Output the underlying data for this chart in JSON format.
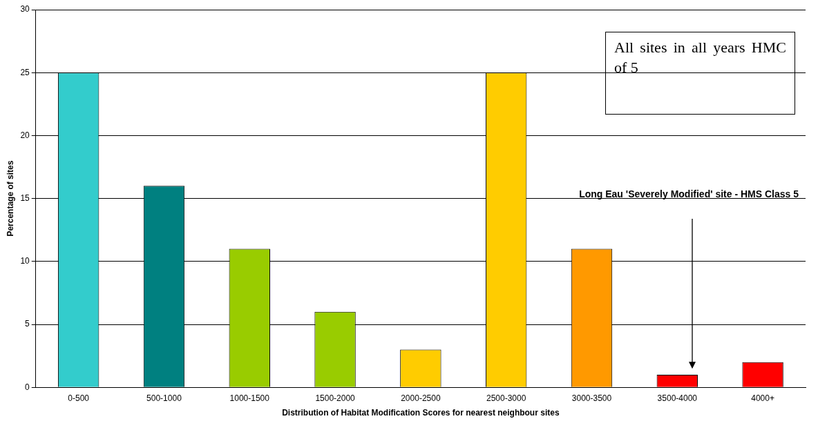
{
  "chart_data": {
    "type": "bar",
    "xlabel": "Distribution of Habitat Modification Scores for nearest neighbour sites",
    "ylabel": "Percentage of sites",
    "categories": [
      "0-500",
      "500-1000",
      "1000-1500",
      "1500-2000",
      "2000-2500",
      "2500-3000",
      "3000-3500",
      "3500-4000",
      "4000+"
    ],
    "values": [
      25,
      16,
      11,
      6,
      3,
      25,
      11,
      1,
      2
    ],
    "colors": [
      "#33cccc",
      "#008080",
      "#99cc00",
      "#99cc00",
      "#ffcc00",
      "#ffcc00",
      "#ff9900",
      "#ff0000",
      "#ff0000"
    ],
    "ylim": [
      0,
      30
    ],
    "yticks": [
      0,
      5,
      10,
      15,
      20,
      25,
      30
    ],
    "grid": "y",
    "legend": false,
    "annotations": [
      "All sites in all years HMC of 5",
      "Long Eau 'Severely Modified' site - HMS Class 5"
    ]
  }
}
